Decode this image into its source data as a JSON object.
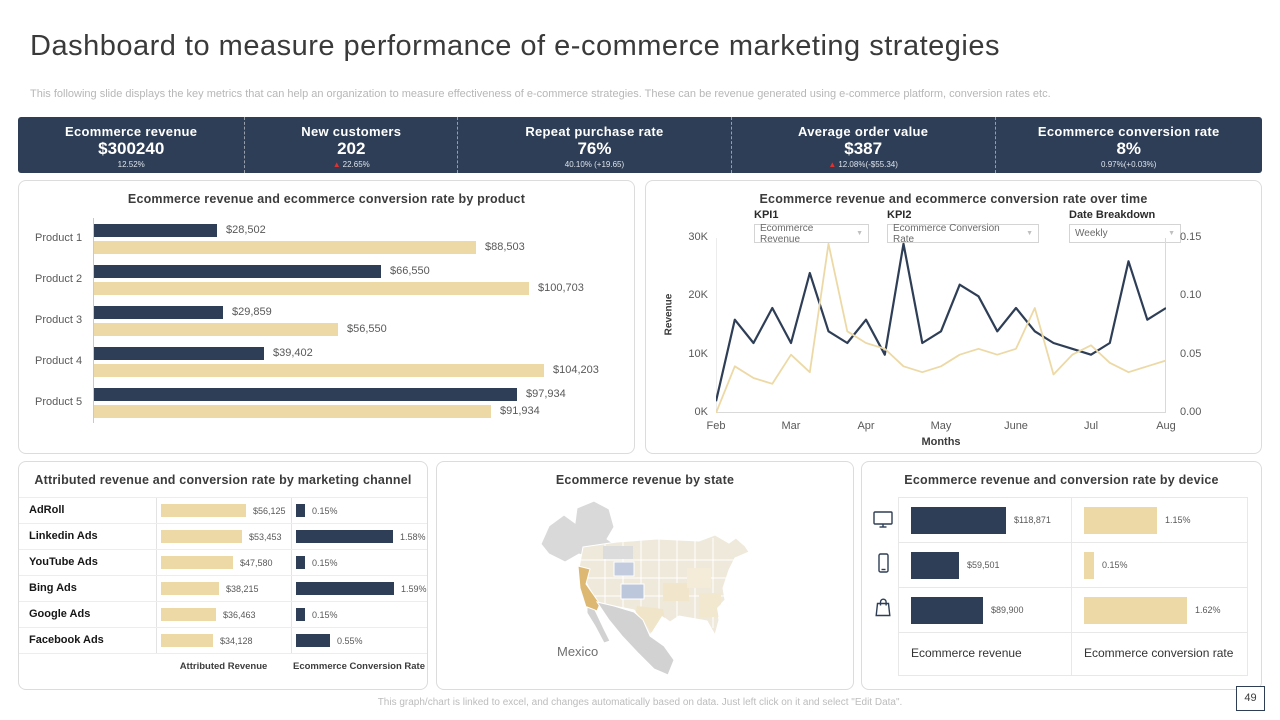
{
  "slide": {
    "title": "Dashboard to measure performance of e-commerce marketing strategies",
    "subtitle": "This following slide displays the key metrics that can help an organization to measure effectiveness of e-commerce strategies. These can be revenue generated using e-commerce platform, conversion rates etc.",
    "footer_note": "This graph/chart is linked to excel, and changes automatically based on data. Just left click on it and select \"Edit Data\".",
    "page_number": "49"
  },
  "colors": {
    "navy": "#2e3e56",
    "tan": "#ecd9a5",
    "map_highlight": "#ddb873",
    "alert_red": "#e03131"
  },
  "kpis": [
    {
      "label": "Ecommerce  revenue",
      "value": "$300240",
      "delta": "12.52%",
      "alert": false
    },
    {
      "label": "New  customers",
      "value": "202",
      "delta": "22.65%",
      "alert": true
    },
    {
      "label": "Repeat purchase rate",
      "value": "76%",
      "delta": "40.10% (+19.65)",
      "alert": false
    },
    {
      "label": "Average order value",
      "value": "$387",
      "delta": "12.08%(-$55.34)",
      "alert": true
    },
    {
      "label": "Ecommerce  conversion  rate",
      "value": "8%",
      "delta": "0.97%(+0.03%)",
      "alert": false
    }
  ],
  "chart_data": [
    {
      "id": "revenue_by_product",
      "type": "bar",
      "orientation": "horizontal",
      "title": "Ecommerce revenue and ecommerce conversion rate by product",
      "categories": [
        "Product 1",
        "Product 2",
        "Product 3",
        "Product 4",
        "Product 5"
      ],
      "series": [
        {
          "name": "navy-series",
          "color": "#2e3e56",
          "values": [
            28502,
            66550,
            29859,
            39402,
            97934
          ],
          "labels": [
            "$28,502",
            "$66,550",
            "$29,859",
            "$39,402",
            "$97,934"
          ]
        },
        {
          "name": "tan-series",
          "color": "#ecd9a5",
          "values": [
            88503,
            100703,
            56550,
            104203,
            91934
          ],
          "labels": [
            "$88,503",
            "$100,703",
            "$56,550",
            "$104,203",
            "$91,934"
          ]
        }
      ],
      "xmax": 104203,
      "grid": false,
      "legend": "none"
    },
    {
      "id": "revenue_over_time",
      "type": "line",
      "title": "Ecommerce revenue and ecommerce conversion rate over time",
      "controls": {
        "kpi1_label": "KPI1",
        "kpi1_value": "Ecommerce Revenue",
        "kpi2_label": "KPI2",
        "kpi2_value": "Ecommerce Conversion Rate",
        "date_label": "Date Breakdown",
        "date_value": "Weekly"
      },
      "x_tick_labels": [
        "Feb",
        "Mar",
        "Apr",
        "May",
        "June",
        "Jul",
        "Aug"
      ],
      "xlabel": "Months",
      "left_axis": {
        "label": "Revenue",
        "ticks": [
          "0K",
          "10K",
          "20K",
          "30K"
        ],
        "min": 0,
        "max": 30
      },
      "right_axis": {
        "ticks": [
          "0.00",
          "0.05",
          "0.10",
          "0.15"
        ],
        "min": 0,
        "max": 0.15
      },
      "series": [
        {
          "name": "Ecommerce Revenue",
          "axis": "left",
          "color": "#2e3e56",
          "unit": "K",
          "values": [
            2,
            16,
            12,
            18,
            12,
            24,
            14,
            12,
            16,
            10,
            29,
            12,
            14,
            22,
            20,
            14,
            18,
            14,
            12,
            11,
            10,
            12,
            26,
            16,
            18
          ]
        },
        {
          "name": "Ecommerce Conversion Rate",
          "axis": "right",
          "color": "#ecd9a5",
          "values": [
            0,
            0.04,
            0.03,
            0.025,
            0.05,
            0.035,
            0.145,
            0.07,
            0.06,
            0.055,
            0.04,
            0.035,
            0.04,
            0.05,
            0.055,
            0.05,
            0.055,
            0.09,
            0.033,
            0.05,
            0.058,
            0.043,
            0.035,
            0.04,
            0.045
          ]
        }
      ],
      "grid": false,
      "legend": "none"
    },
    {
      "id": "channel_table",
      "type": "bar",
      "title": "Attributed  revenue and conversion rate by marketing channel",
      "rows": [
        {
          "channel": "AdRoll",
          "revenue": 56125,
          "revenue_label": "$56,125",
          "conversion": 0.15,
          "conversion_label": "0.15%"
        },
        {
          "channel": "Linkedin Ads",
          "revenue": 53453,
          "revenue_label": "$53,453",
          "conversion": 1.58,
          "conversion_label": "1.58%"
        },
        {
          "channel": "YouTube Ads",
          "revenue": 47580,
          "revenue_label": "$47,580",
          "conversion": 0.15,
          "conversion_label": "0.15%"
        },
        {
          "channel": "Bing Ads",
          "revenue": 38215,
          "revenue_label": "$38,215",
          "conversion": 1.59,
          "conversion_label": "1.59%"
        },
        {
          "channel": "Google Ads",
          "revenue": 36463,
          "revenue_label": "$36,463",
          "conversion": 0.15,
          "conversion_label": "0.15%"
        },
        {
          "channel": "Facebook Ads",
          "revenue": 34128,
          "revenue_label": "$34,128",
          "conversion": 0.55,
          "conversion_label": "0.55%"
        }
      ],
      "col_footers": [
        "Attributed Revenue",
        "Ecommerce  Conversion Rate"
      ],
      "revenue_max": 56125,
      "conversion_max": 1.59
    },
    {
      "id": "revenue_by_state_map",
      "type": "map",
      "title": "Ecommerce revenue by state",
      "annotation": "Mexico",
      "highlighted_state_color": "#ddb873"
    },
    {
      "id": "device_table",
      "type": "bar",
      "title": "Ecommerce revenue and conversion rate by device",
      "rows": [
        {
          "device": "desktop",
          "revenue": 118871,
          "revenue_label": "$118,871",
          "conversion": 1.15,
          "conversion_label": "1.15%"
        },
        {
          "device": "mobile",
          "revenue": 59501,
          "revenue_label": "$59,501",
          "conversion": 0.15,
          "conversion_label": "0.15%"
        },
        {
          "device": "shopping-bag",
          "revenue": 89900,
          "revenue_label": "$89,900",
          "conversion": 1.62,
          "conversion_label": "1.62%"
        }
      ],
      "col_footers": [
        "Ecommerce revenue",
        "Ecommerce conversion rate"
      ],
      "revenue_max": 118871,
      "conversion_max": 1.62
    }
  ]
}
